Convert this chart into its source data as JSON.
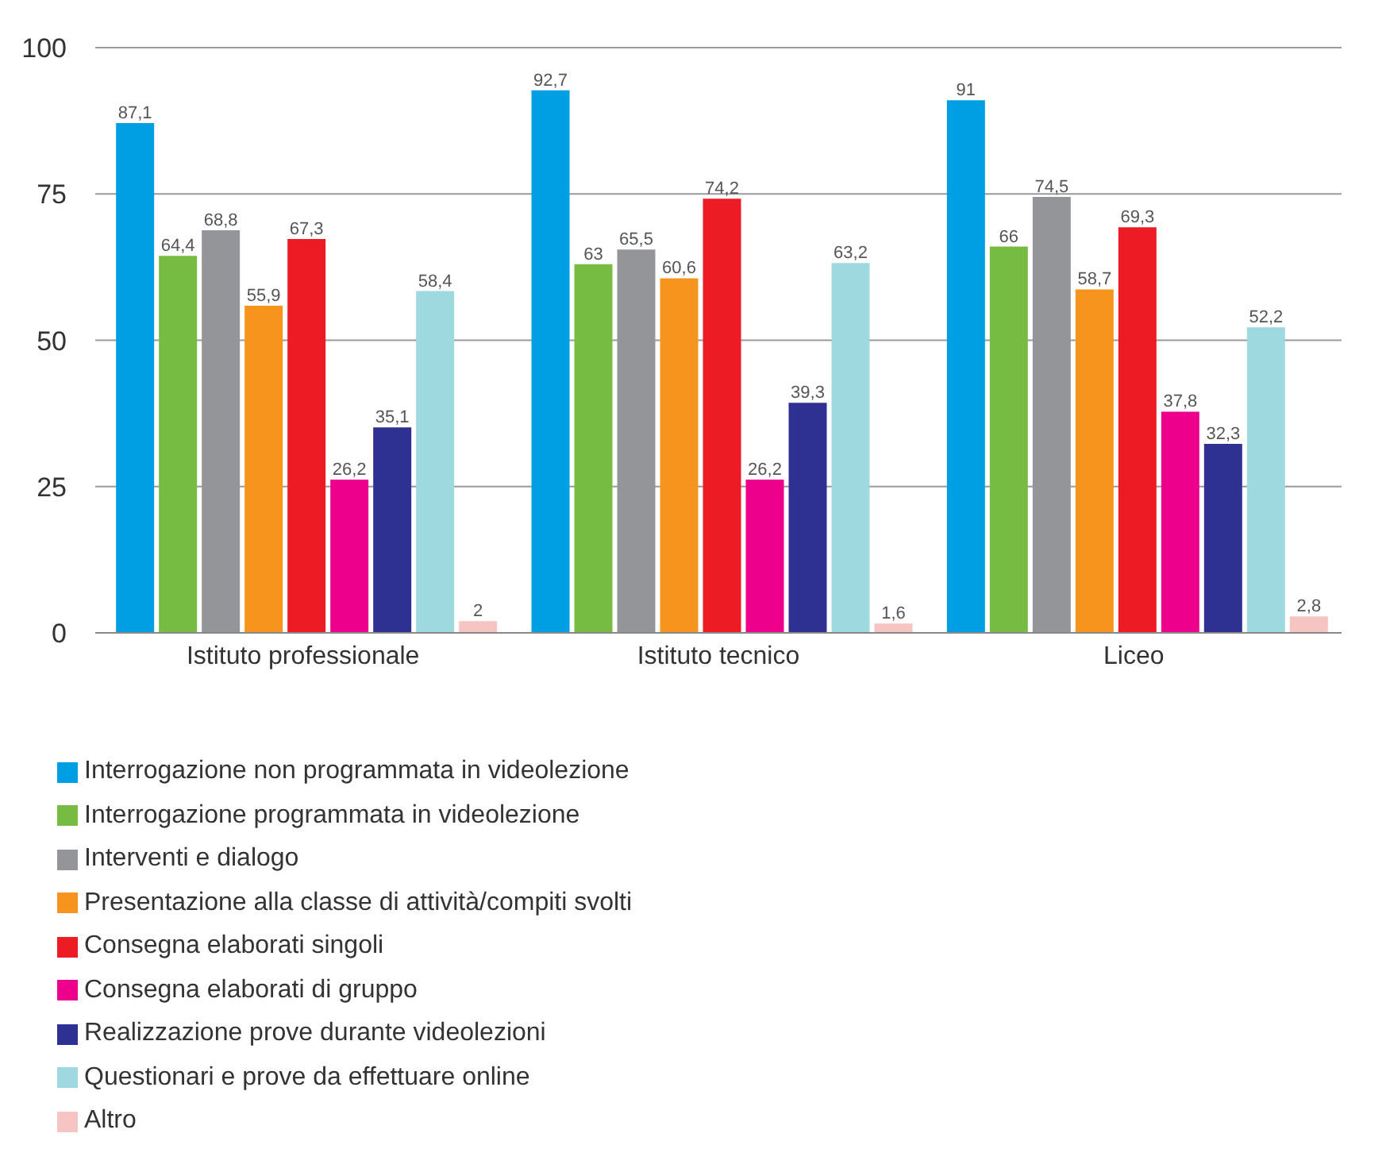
{
  "chart_data": {
    "type": "bar",
    "categories": [
      "Istituto professionale",
      "Istituto tecnico",
      "Liceo"
    ],
    "series": [
      {
        "name": "Interrogazione non programmata in videolezione",
        "color": "#009fe3",
        "values": [
          87.1,
          92.7,
          91
        ],
        "value_labels": [
          "87,1",
          "92,7",
          "91"
        ]
      },
      {
        "name": "Interrogazione programmata in videolezione",
        "color": "#76bc43",
        "values": [
          64.4,
          63,
          66
        ],
        "value_labels": [
          "64,4",
          "63",
          "66"
        ]
      },
      {
        "name": "Interventi e dialogo",
        "color": "#939598",
        "values": [
          68.8,
          65.5,
          74.5
        ],
        "value_labels": [
          "68,8",
          "65,5",
          "74,5"
        ]
      },
      {
        "name": "Presentazione alla classe di attività/compiti svolti",
        "color": "#f7941d",
        "values": [
          55.9,
          60.6,
          58.7
        ],
        "value_labels": [
          "55,9",
          "60,6",
          "58,7"
        ]
      },
      {
        "name": "Consegna elaborati singoli",
        "color": "#ed1c24",
        "values": [
          67.3,
          74.2,
          69.3
        ],
        "value_labels": [
          "67,3",
          "74,2",
          "69,3"
        ]
      },
      {
        "name": "Consegna elaborati di gruppo",
        "color": "#ec008c",
        "values": [
          26.2,
          26.2,
          37.8
        ],
        "value_labels": [
          "26,2",
          "26,2",
          "37,8"
        ]
      },
      {
        "name": "Realizzazione prove durante videolezioni",
        "color": "#2e3192",
        "values": [
          35.1,
          39.3,
          32.3
        ],
        "value_labels": [
          "35,1",
          "39,3",
          "32,3"
        ]
      },
      {
        "name": "Questionari e prove da effettuare online",
        "color": "#9fd9e0",
        "values": [
          58.4,
          63.2,
          52.2
        ],
        "value_labels": [
          "58,4",
          "63,2",
          "52,2"
        ]
      },
      {
        "name": "Altro",
        "color": "#f7c4c4",
        "values": [
          2,
          1.6,
          2.8
        ],
        "value_labels": [
          "2",
          "1,6",
          "2,8"
        ]
      }
    ],
    "ylim": [
      0,
      100
    ],
    "yticks": [
      0,
      25,
      50,
      75,
      100
    ],
    "grid": "y",
    "legend": "bottom"
  }
}
